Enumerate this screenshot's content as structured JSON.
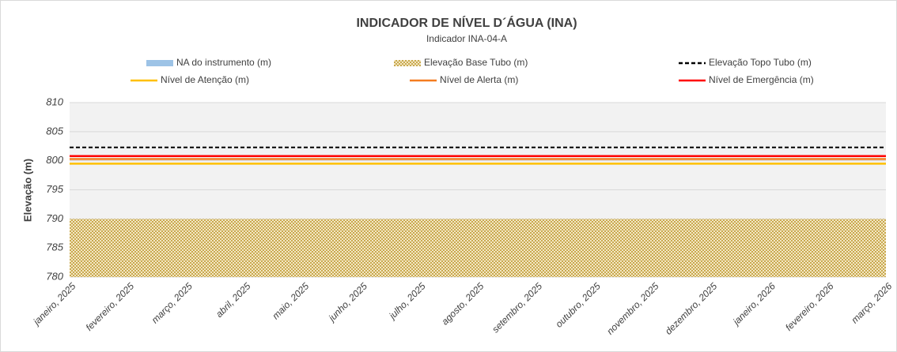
{
  "chart_data": {
    "type": "line",
    "title": "INDICADOR DE NÍVEL D´ÁGUA (INA)",
    "subtitle": "Indicador INA-04-A",
    "y_label": "Elevação (m)",
    "categories": [
      "janeiro, 2025",
      "fevereiro, 2025",
      "março, 2025",
      "abril, 2025",
      "maio, 2025",
      "junho, 2025",
      "julho, 2025",
      "agosto, 2025",
      "setembro, 2025",
      "outubro, 2025",
      "novembro, 2025",
      "dezembro, 2025",
      "janeiro, 2026",
      "fevereiro, 2026",
      "março, 2026"
    ],
    "ylim": [
      780,
      810
    ],
    "yticks": [
      780,
      785,
      790,
      795,
      800,
      805,
      810
    ],
    "grid": true,
    "series": [
      {
        "name": "NA do instrumento (m)",
        "color": "#9dc3e6",
        "style": "area",
        "values": [
          null,
          null,
          null,
          null,
          null,
          null,
          null,
          null,
          null,
          null,
          null,
          null,
          null,
          null,
          null
        ]
      },
      {
        "name": "Elevação Base Tubo (m)",
        "color": "#c9a94f",
        "style": "hatched",
        "values": [
          790,
          790,
          790,
          790,
          790,
          790,
          790,
          790,
          790,
          790,
          790,
          790,
          790,
          790,
          790
        ]
      },
      {
        "name": "Elevação Topo Tubo (m)",
        "color": "#000000",
        "style": "dashed",
        "values": [
          802.3,
          802.3,
          802.3,
          802.3,
          802.3,
          802.3,
          802.3,
          802.3,
          802.3,
          802.3,
          802.3,
          802.3,
          802.3,
          802.3,
          802.3
        ]
      },
      {
        "name": "Nível de Atenção (m)",
        "color": "#ffc000",
        "style": "solid",
        "values": [
          799.5,
          799.5,
          799.5,
          799.5,
          799.5,
          799.5,
          799.5,
          799.5,
          799.5,
          799.5,
          799.5,
          799.5,
          799.5,
          799.5,
          799.5
        ]
      },
      {
        "name": "Nível de Alerta (m)",
        "color": "#f47c20",
        "style": "solid",
        "values": [
          800.3,
          800.3,
          800.3,
          800.3,
          800.3,
          800.3,
          800.3,
          800.3,
          800.3,
          800.3,
          800.3,
          800.3,
          800.3,
          800.3,
          800.3
        ]
      },
      {
        "name": "Nível de Emergência (m)",
        "color": "#ff0000",
        "style": "solid",
        "values": [
          800.8,
          800.8,
          800.8,
          800.8,
          800.8,
          800.8,
          800.8,
          800.8,
          800.8,
          800.8,
          800.8,
          800.8,
          800.8,
          800.8,
          800.8
        ]
      }
    ]
  }
}
